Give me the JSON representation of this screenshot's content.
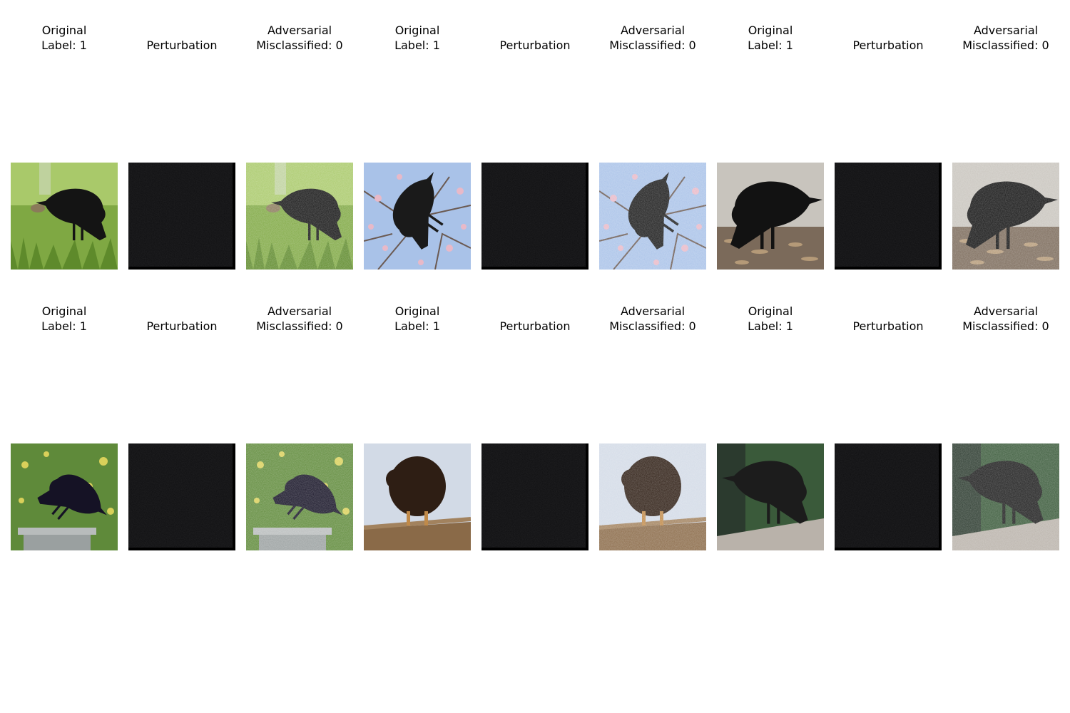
{
  "figure": {
    "rows": [
      {
        "panels": [
          {
            "kind": "original",
            "title": "Original\nLabel: 1",
            "scene": "grass"
          },
          {
            "kind": "perturbation",
            "title": "Perturbation",
            "scene": "grass"
          },
          {
            "kind": "adversarial",
            "title": "Adversarial\nMisclassified: 0",
            "scene": "grass"
          },
          {
            "kind": "original",
            "title": "Original\nLabel: 1",
            "scene": "blossom"
          },
          {
            "kind": "perturbation",
            "title": "Perturbation",
            "scene": "blossom"
          },
          {
            "kind": "adversarial",
            "title": "Adversarial\nMisclassified: 0",
            "scene": "blossom"
          },
          {
            "kind": "original",
            "title": "Original\nLabel: 1",
            "scene": "ground"
          },
          {
            "kind": "perturbation",
            "title": "Perturbation",
            "scene": "ground"
          },
          {
            "kind": "adversarial",
            "title": "Adversarial\nMisclassified: 0",
            "scene": "ground"
          }
        ]
      },
      {
        "panels": [
          {
            "kind": "original",
            "title": "Original\nLabel: 1",
            "scene": "birdbath"
          },
          {
            "kind": "perturbation",
            "title": "Perturbation",
            "scene": "birdbath"
          },
          {
            "kind": "adversarial",
            "title": "Adversarial\nMisclassified: 0",
            "scene": "birdbath"
          },
          {
            "kind": "original",
            "title": "Original\nLabel: 1",
            "scene": "branch"
          },
          {
            "kind": "perturbation",
            "title": "Perturbation",
            "scene": "branch"
          },
          {
            "kind": "adversarial",
            "title": "Adversarial\nMisclassified: 0",
            "scene": "branch"
          },
          {
            "kind": "original",
            "title": "Original\nLabel: 1",
            "scene": "railing"
          },
          {
            "kind": "perturbation",
            "title": "Perturbation",
            "scene": "railing"
          },
          {
            "kind": "adversarial",
            "title": "Adversarial\nMisclassified: 0",
            "scene": "railing"
          }
        ]
      }
    ]
  }
}
